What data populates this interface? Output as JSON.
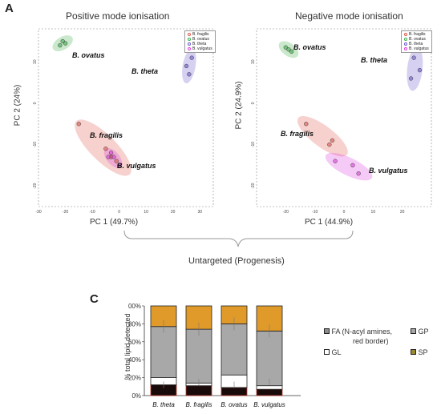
{
  "panel_label_a": "A",
  "panel_label_c": "C",
  "bracket_label": "Untargeted (Progenesis)",
  "colors": {
    "fragilis": "#e05a4f",
    "ovatus": "#3fae49",
    "theta": "#6a5acd",
    "vulgatus": "#e040e0",
    "fa": "#8c8c8c",
    "gp": "#a8a8a8",
    "gl": "#ffffff",
    "sp": "#e09a2a",
    "fa_dark": "#1a0b0b"
  },
  "legend_entries": [
    "B. fragilis",
    "B. ovatus",
    "B. theta",
    "B. vulgatus"
  ],
  "chart_data": [
    {
      "type": "scatter",
      "title": "Positive mode ionisation",
      "xlabel": "PC 1 (49.7%)",
      "ylabel": "PC 2 (24%)",
      "xlim": [
        -30,
        35
      ],
      "ylim": [
        -25,
        18
      ],
      "xticks": [
        "-30",
        "-20",
        "-10",
        "0",
        "10",
        "20",
        "30"
      ],
      "yticks": [
        "10",
        "0",
        "-10",
        "-20"
      ],
      "series": [
        {
          "name": "B. fragilis",
          "points": [
            [
              -15,
              -5
            ],
            [
              -5,
              -11
            ],
            [
              -3,
              -13
            ],
            [
              -1,
              -14
            ]
          ]
        },
        {
          "name": "B. ovatus",
          "points": [
            [
              -22,
              14
            ],
            [
              -21,
              15
            ],
            [
              -20,
              14.5
            ]
          ]
        },
        {
          "name": "B. theta",
          "points": [
            [
              25,
              9
            ],
            [
              27,
              11
            ],
            [
              26,
              7
            ]
          ]
        },
        {
          "name": "B. vulgatus",
          "points": [
            [
              -3,
              -12
            ],
            [
              -2,
              -13
            ],
            [
              0,
              -15
            ],
            [
              -4,
              -13
            ]
          ]
        }
      ],
      "labels": [
        "B. ovatus",
        "B. theta",
        "B. fragilis",
        "B. vulgatus"
      ]
    },
    {
      "type": "scatter",
      "title": "Negative mode ionisation",
      "xlabel": "PC 1 (44.9%)",
      "ylabel": "PC 2 (24.9%)",
      "xlim": [
        -30,
        30
      ],
      "ylim": [
        -25,
        18
      ],
      "xticks": [
        "-20",
        "-10",
        "0",
        "10",
        "20"
      ],
      "yticks": [
        "10",
        "0",
        "-10",
        "-20"
      ],
      "series": [
        {
          "name": "B. fragilis",
          "points": [
            [
              -13,
              -5
            ],
            [
              -5,
              -10
            ],
            [
              -4,
              -9
            ]
          ]
        },
        {
          "name": "B. ovatus",
          "points": [
            [
              -20,
              13.5
            ],
            [
              -19,
              13
            ],
            [
              -18,
              12.5
            ]
          ]
        },
        {
          "name": "B. theta",
          "points": [
            [
              24,
              11
            ],
            [
              26,
              8
            ],
            [
              23,
              6
            ]
          ]
        },
        {
          "name": "B. vulgatus",
          "points": [
            [
              -3,
              -14
            ],
            [
              3,
              -15
            ],
            [
              5,
              -17
            ]
          ]
        }
      ],
      "labels": [
        "B. ovatus",
        "B. theta",
        "B. fragilis",
        "B. vulgatus"
      ]
    },
    {
      "type": "bar",
      "stacked": true,
      "ylabel": "% total lipid detected",
      "yticks": [
        "0%",
        "20%",
        "40%",
        "60%",
        "80%",
        "100%"
      ],
      "categories": [
        "B. theta",
        "B. fragilis",
        "B. ovatus",
        "B. vulgatus"
      ],
      "series": [
        {
          "name": "FA",
          "values": [
            12,
            11,
            9,
            7
          ]
        },
        {
          "name": "GL",
          "values": [
            8,
            3,
            14,
            4
          ]
        },
        {
          "name": "GP",
          "values": [
            57,
            60,
            57,
            61
          ]
        },
        {
          "name": "SP",
          "values": [
            23,
            26,
            20,
            28
          ]
        }
      ],
      "legend": {
        "fa": "FA",
        "fa_note": "(N-acyl amines,",
        "fa_note2": "red border)",
        "gp": "GP",
        "gl": "GL",
        "sp": "SP"
      }
    }
  ]
}
